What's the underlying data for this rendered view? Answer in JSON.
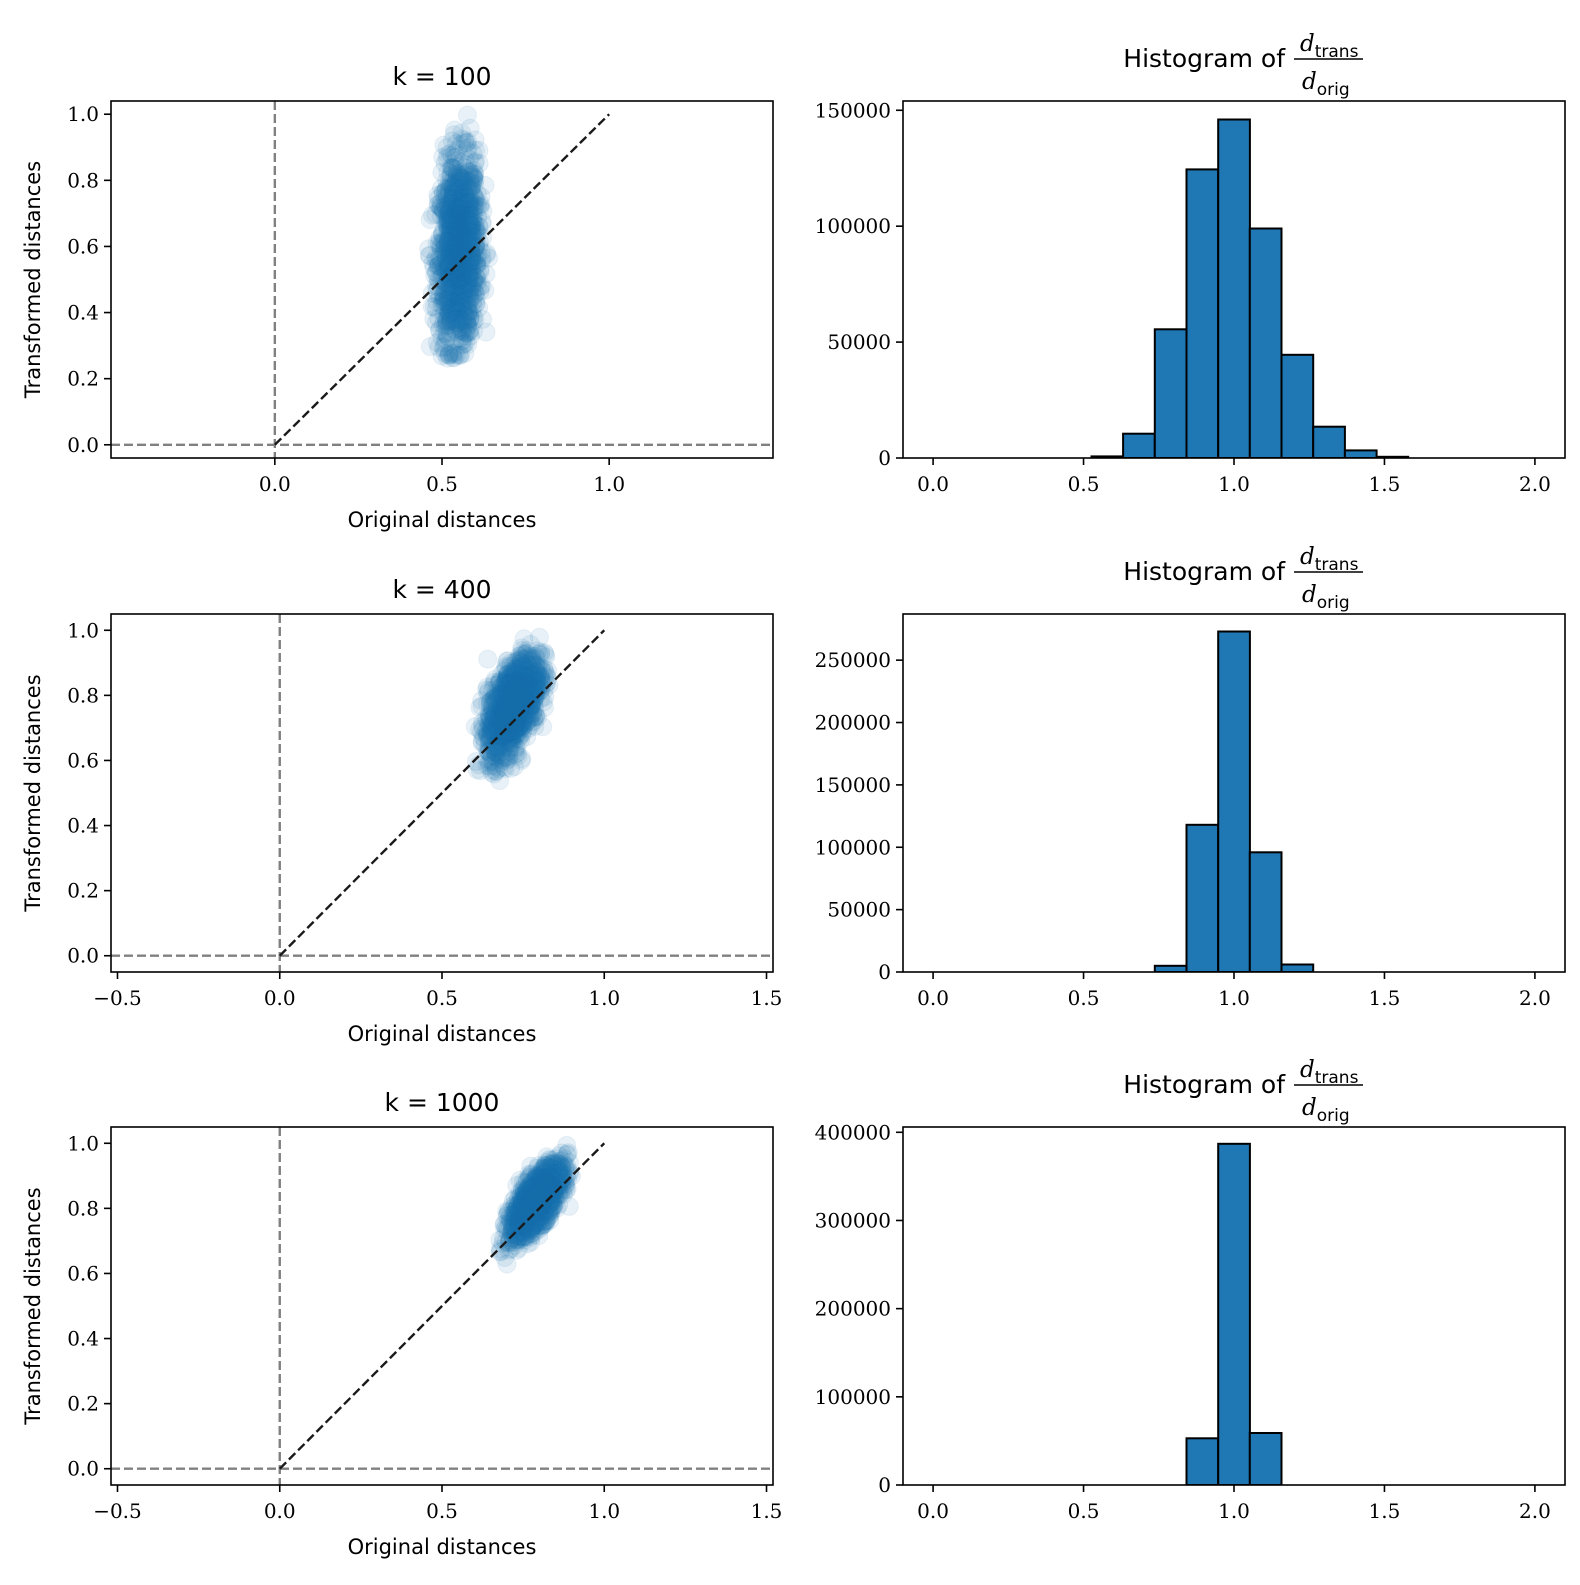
{
  "chart_data": [
    {
      "type": "scatter",
      "title": "k = 100",
      "xlabel": "Original distances",
      "ylabel": "Transformed distances",
      "xlim": [
        -0.49,
        1.49
      ],
      "ylim": [
        -0.04,
        1.04
      ],
      "xticks": [
        0.0,
        0.5,
        1.0
      ],
      "xtick_labels": [
        "0.0",
        "0.5",
        "1.0"
      ],
      "yticks": [
        0.0,
        0.2,
        0.4,
        0.6,
        0.8,
        1.0
      ],
      "ytick_labels": [
        "0.0",
        "0.2",
        "0.4",
        "0.6",
        "0.8",
        "1.0"
      ],
      "point_cloud": {
        "x_center": 0.55,
        "x_spread": 0.03,
        "y_center": 0.58,
        "y_spread": 0.14,
        "correlation": 0.1,
        "x_range": [
          0.46,
          0.64
        ],
        "y_range": [
          0.26,
          1.0
        ],
        "alpha": 0.1
      },
      "reference_lines": {
        "diagonal": {
          "from": [
            0,
            0
          ],
          "to": [
            1,
            1
          ],
          "style": "dashed",
          "color": "#1a1a1a"
        },
        "axis_zero_lines": {
          "x": 0,
          "y": 0,
          "style": "dashed",
          "color": "#808080"
        }
      }
    },
    {
      "type": "bar",
      "title": "Histogram of",
      "title_fraction": {
        "numerator": "d",
        "numerator_sub": "trans",
        "denominator": "d",
        "denominator_sub": "orig"
      },
      "xlim": [
        -0.1,
        2.1
      ],
      "ylim": [
        0,
        154000
      ],
      "xticks": [
        0.0,
        0.5,
        1.0,
        1.5,
        2.0
      ],
      "xtick_labels": [
        "0.0",
        "0.5",
        "1.0",
        "1.5",
        "2.0"
      ],
      "yticks": [
        0,
        50000,
        100000,
        150000
      ],
      "ytick_labels": [
        "0",
        "50000",
        "100000",
        "150000"
      ],
      "bin_edges": [
        0.0,
        0.1053,
        0.2105,
        0.3158,
        0.4211,
        0.5263,
        0.6316,
        0.7368,
        0.8421,
        0.9474,
        1.0526,
        1.1579,
        1.2632,
        1.3684,
        1.4737,
        1.5789,
        1.6842,
        1.7895,
        1.8947,
        2.0
      ],
      "values": [
        0,
        0,
        0,
        0,
        0,
        700,
        10500,
        55500,
        124500,
        146000,
        99000,
        44500,
        13500,
        3300,
        500,
        0,
        0,
        0,
        0
      ]
    },
    {
      "type": "scatter",
      "title": "k = 400",
      "xlabel": "Original distances",
      "ylabel": "Transformed distances",
      "xlim": [
        -0.52,
        1.52
      ],
      "ylim": [
        -0.05,
        1.05
      ],
      "xticks": [
        -0.5,
        0.0,
        0.5,
        1.0,
        1.5
      ],
      "xtick_labels": [
        "−0.5",
        "0.0",
        "0.5",
        "1.0",
        "1.5"
      ],
      "yticks": [
        0.0,
        0.2,
        0.4,
        0.6,
        0.8,
        1.0
      ],
      "ytick_labels": [
        "0.0",
        "0.2",
        "0.4",
        "0.6",
        "0.8",
        "1.0"
      ],
      "point_cloud": {
        "x_center": 0.72,
        "x_spread": 0.04,
        "y_center": 0.77,
        "y_spread": 0.075,
        "correlation": 0.55,
        "x_range": [
          0.6,
          0.83
        ],
        "y_range": [
          0.48,
          1.0
        ],
        "alpha": 0.1
      },
      "reference_lines": {
        "diagonal": {
          "from": [
            0,
            0
          ],
          "to": [
            1,
            1
          ],
          "style": "dashed",
          "color": "#1a1a1a"
        },
        "axis_zero_lines": {
          "x": 0,
          "y": 0,
          "style": "dashed",
          "color": "#808080"
        }
      }
    },
    {
      "type": "bar",
      "title": "Histogram of",
      "title_fraction": {
        "numerator": "d",
        "numerator_sub": "trans",
        "denominator": "d",
        "denominator_sub": "orig"
      },
      "xlim": [
        -0.1,
        2.1
      ],
      "ylim": [
        0,
        287000
      ],
      "xticks": [
        0.0,
        0.5,
        1.0,
        1.5,
        2.0
      ],
      "xtick_labels": [
        "0.0",
        "0.5",
        "1.0",
        "1.5",
        "2.0"
      ],
      "yticks": [
        0,
        50000,
        100000,
        150000,
        200000,
        250000
      ],
      "ytick_labels": [
        "0",
        "50000",
        "100000",
        "150000",
        "200000",
        "250000"
      ],
      "bin_edges": [
        0.0,
        0.1053,
        0.2105,
        0.3158,
        0.4211,
        0.5263,
        0.6316,
        0.7368,
        0.8421,
        0.9474,
        1.0526,
        1.1579,
        1.2632,
        1.3684,
        1.4737,
        1.5789,
        1.6842,
        1.7895,
        1.8947,
        2.0
      ],
      "values": [
        0,
        0,
        0,
        0,
        0,
        0,
        0,
        5000,
        118000,
        273000,
        96000,
        6000,
        0,
        0,
        0,
        0,
        0,
        0,
        0
      ]
    },
    {
      "type": "scatter",
      "title": "k = 1000",
      "xlabel": "Original distances",
      "ylabel": "Transformed distances",
      "xlim": [
        -0.52,
        1.52
      ],
      "ylim": [
        -0.05,
        1.05
      ],
      "xticks": [
        -0.5,
        0.0,
        0.5,
        1.0,
        1.5
      ],
      "xtick_labels": [
        "−0.5",
        "0.0",
        "0.5",
        "1.0",
        "1.5"
      ],
      "yticks": [
        0.0,
        0.2,
        0.4,
        0.6,
        0.8,
        1.0
      ],
      "ytick_labels": [
        "0.0",
        "0.2",
        "0.4",
        "0.6",
        "0.8",
        "1.0"
      ],
      "point_cloud": {
        "x_center": 0.79,
        "x_spread": 0.04,
        "y_center": 0.82,
        "y_spread": 0.055,
        "correlation": 0.72,
        "x_range": [
          0.66,
          0.9
        ],
        "y_range": [
          0.59,
          1.0
        ],
        "alpha": 0.1
      },
      "reference_lines": {
        "diagonal": {
          "from": [
            0,
            0
          ],
          "to": [
            1,
            1
          ],
          "style": "dashed",
          "color": "#1a1a1a"
        },
        "axis_zero_lines": {
          "x": 0,
          "y": 0,
          "style": "dashed",
          "color": "#808080"
        }
      }
    },
    {
      "type": "bar",
      "title": "Histogram of",
      "title_fraction": {
        "numerator": "d",
        "numerator_sub": "trans",
        "denominator": "d",
        "denominator_sub": "orig"
      },
      "xlim": [
        -0.1,
        2.1
      ],
      "ylim": [
        0,
        406000
      ],
      "xticks": [
        0.0,
        0.5,
        1.0,
        1.5,
        2.0
      ],
      "xtick_labels": [
        "0.0",
        "0.5",
        "1.0",
        "1.5",
        "2.0"
      ],
      "yticks": [
        0,
        100000,
        200000,
        300000,
        400000
      ],
      "ytick_labels": [
        "0",
        "100000",
        "200000",
        "300000",
        "400000"
      ],
      "bin_edges": [
        0.0,
        0.1053,
        0.2105,
        0.3158,
        0.4211,
        0.5263,
        0.6316,
        0.7368,
        0.8421,
        0.9474,
        1.0526,
        1.1579,
        1.2632,
        1.3684,
        1.4737,
        1.5789,
        1.6842,
        1.7895,
        1.8947,
        2.0
      ],
      "values": [
        0,
        0,
        0,
        0,
        0,
        0,
        0,
        0,
        53000,
        387000,
        59000,
        0,
        0,
        0,
        0,
        0,
        0,
        0,
        0
      ]
    }
  ],
  "colors": {
    "scatter_points": "#1f77b4",
    "bar_fill": "#1f77b4",
    "bar_edge": "#000000",
    "diagonal_line": "#1a1a1a",
    "zero_lines": "#808080",
    "axes": "#000000"
  }
}
